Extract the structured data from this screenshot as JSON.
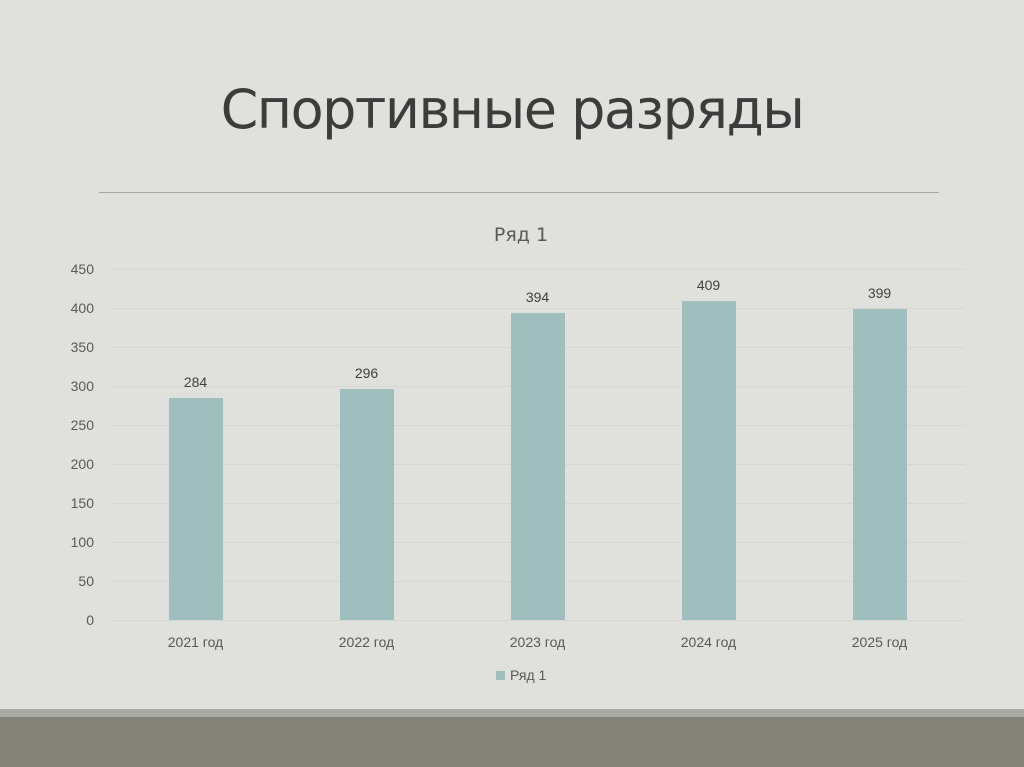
{
  "slide": {
    "title": "Спортивные разряды"
  },
  "chart_data": {
    "type": "bar",
    "title": "Ряд 1",
    "categories": [
      "2021 год",
      "2022 год",
      "2023 год",
      "2024 год",
      "2025 год"
    ],
    "series": [
      {
        "name": "Ряд 1",
        "values": [
          284,
          296,
          394,
          409,
          399
        ],
        "color": "#9fbfbf"
      }
    ],
    "values": [
      284,
      296,
      394,
      409,
      399
    ],
    "xlabel": "",
    "ylabel": "",
    "ylim": [
      0,
      450
    ],
    "yticks": [
      "0",
      "50",
      "100",
      "150",
      "200",
      "250",
      "300",
      "350",
      "400",
      "450"
    ],
    "grid": true,
    "legend_position": "bottom",
    "data_labels": [
      "284",
      "296",
      "394",
      "409",
      "399"
    ]
  }
}
